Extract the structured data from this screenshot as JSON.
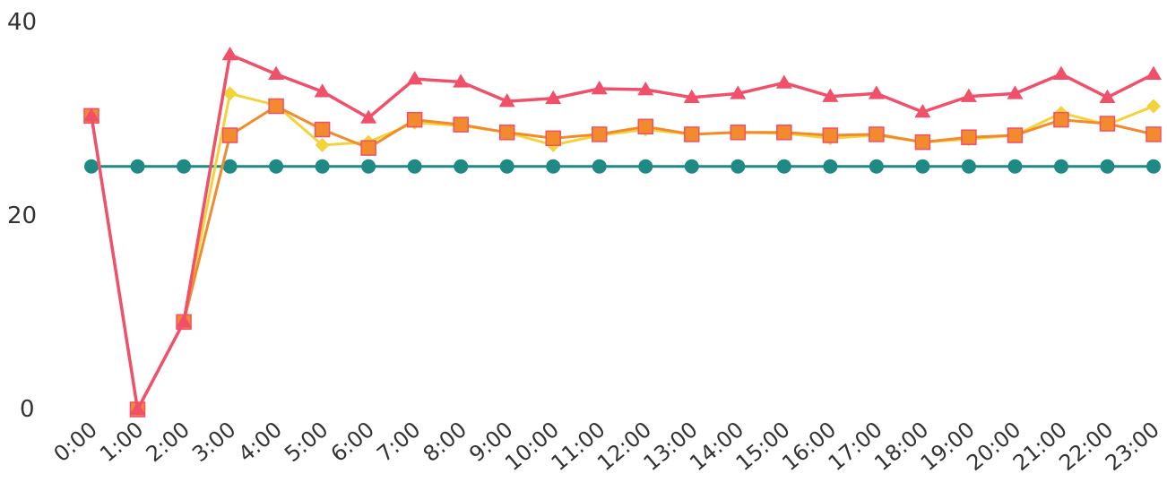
{
  "chart_data": {
    "type": "line",
    "title": "",
    "xlabel": "",
    "ylabel": "",
    "ylim": [
      0,
      40
    ],
    "y_ticks": [
      "0",
      "20",
      "40"
    ],
    "grid": false,
    "categories": [
      "0:00",
      "1:00",
      "2:00",
      "3:00",
      "4:00",
      "5:00",
      "6:00",
      "7:00",
      "8:00",
      "9:00",
      "10:00",
      "11:00",
      "12:00",
      "13:00",
      "14:00",
      "15:00",
      "16:00",
      "17:00",
      "18:00",
      "19:00",
      "20:00",
      "21:00",
      "22:00",
      "23:00"
    ],
    "series": [
      {
        "color": "#1f8a84",
        "marker": "circle",
        "values": [
          25,
          25,
          25,
          25,
          25,
          25,
          25,
          25,
          25,
          25,
          25,
          25,
          25,
          25,
          25,
          25,
          25,
          25,
          25,
          25,
          25,
          25,
          25,
          25
        ]
      },
      {
        "color": "#f2d43a",
        "marker": "diamond",
        "values": [
          30.2,
          0,
          9,
          32.5,
          31.3,
          27.2,
          27.5,
          29.5,
          29.2,
          28.5,
          27.2,
          28.2,
          28.8,
          28.3,
          28.5,
          28.4,
          27.9,
          28.2,
          27.5,
          27.8,
          28.2,
          30.5,
          29.3,
          31.2
        ]
      },
      {
        "color": "#f28a2e",
        "marker": "square",
        "values": [
          30.2,
          0,
          9,
          28.2,
          31.2,
          28.8,
          26.9,
          29.8,
          29.3,
          28.5,
          27.9,
          28.3,
          29.1,
          28.3,
          28.5,
          28.5,
          28.2,
          28.3,
          27.5,
          28,
          28.2,
          29.8,
          29.4,
          28.3
        ]
      },
      {
        "color": "#f0506a",
        "marker": "triangle",
        "values": [
          30.2,
          0,
          9,
          36.5,
          34.5,
          32.7,
          30,
          34,
          33.7,
          31.7,
          32,
          33,
          32.9,
          32.1,
          32.5,
          33.6,
          32.2,
          32.5,
          30.6,
          32.2,
          32.5,
          34.5,
          32.1,
          34.5
        ]
      }
    ]
  }
}
